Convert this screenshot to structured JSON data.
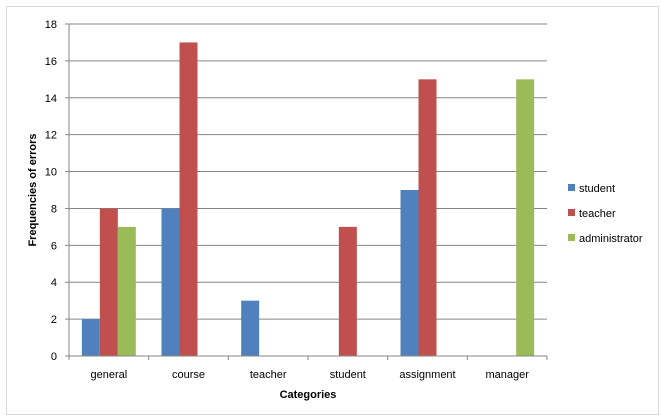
{
  "chart_data": {
    "type": "bar",
    "title": "",
    "xlabel": "Categories",
    "ylabel": "Frequencies of errors",
    "categories": [
      "general",
      "course",
      "teacher",
      "student",
      "assignment",
      "manager"
    ],
    "ylim": [
      0,
      18
    ],
    "yticks": [
      0,
      2,
      4,
      6,
      8,
      10,
      12,
      14,
      16,
      18
    ],
    "grid": true,
    "legend_position": "right",
    "series": [
      {
        "name": "student",
        "color": "#4F81BD",
        "values": [
          2,
          8,
          3,
          0,
          9,
          0
        ]
      },
      {
        "name": "teacher",
        "color": "#C0504D",
        "values": [
          8,
          17,
          0,
          7,
          15,
          0
        ]
      },
      {
        "name": "administrator",
        "color": "#9BBB59",
        "values": [
          7,
          0,
          0,
          0,
          0,
          15
        ]
      }
    ]
  }
}
